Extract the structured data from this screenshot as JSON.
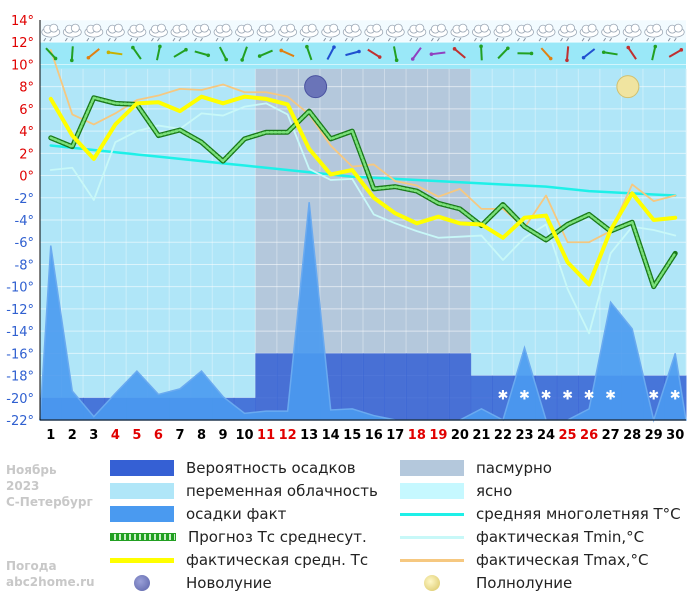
{
  "chart_data": {
    "type": "line",
    "title": "",
    "xlabel": "",
    "ylabel": "",
    "ylim": [
      -22,
      14
    ],
    "y_ticks": [
      "14°",
      "12°",
      "10°",
      "8°",
      "6°",
      "4°",
      "2°",
      "0°",
      "-2°",
      "-4°",
      "-6°",
      "-8°",
      "-10°",
      "-12°",
      "-14°",
      "-16°",
      "-18°",
      "-20°",
      "-22°"
    ],
    "x": [
      1,
      2,
      3,
      4,
      5,
      6,
      7,
      8,
      9,
      10,
      11,
      12,
      13,
      14,
      15,
      16,
      17,
      18,
      19,
      20,
      21,
      22,
      23,
      24,
      25,
      26,
      27,
      28,
      29,
      30
    ],
    "x_labels": [
      "1",
      "2",
      "3",
      "4",
      "5",
      "6",
      "7",
      "8",
      "9",
      "10",
      "11",
      "12",
      "13",
      "14",
      "15",
      "16",
      "17",
      "18",
      "19",
      "20",
      "21",
      "22",
      "23",
      "24",
      "25",
      "26",
      "27",
      "28",
      "29",
      "30"
    ],
    "weekend_days": [
      4,
      5,
      6,
      11,
      12,
      18,
      19,
      25,
      26
    ],
    "weekend_color": "#e00000",
    "weekday_color": "#000000",
    "grid": true,
    "series": [
      {
        "name": "средняя многолетняя T°C",
        "color": "#1ef0e8",
        "values": [
          2.7,
          2.5,
          2.3,
          2.1,
          1.9,
          1.7,
          1.5,
          1.3,
          1.1,
          0.9,
          0.7,
          0.5,
          0.3,
          0.1,
          -0.1,
          -0.2,
          -0.3,
          -0.4,
          -0.5,
          -0.6,
          -0.7,
          -0.8,
          -0.9,
          -1.0,
          -1.2,
          -1.4,
          -1.5,
          -1.6,
          -1.7,
          -1.8
        ]
      },
      {
        "name": "фактическая Tmin,°C",
        "color": "#c8f8f8",
        "values": [
          0.5,
          0.7,
          -2.2,
          3.0,
          4.0,
          4.5,
          4.2,
          5.6,
          5.4,
          6.2,
          6.5,
          5.5,
          0.6,
          -0.4,
          -0.3,
          -3.5,
          -4.3,
          -5.0,
          -5.6,
          -5.5,
          -5.4,
          -7.6,
          -5.6,
          -4.4,
          -10.2,
          -14.2,
          -7.0,
          -4.6,
          -4.9,
          -5.4
        ]
      },
      {
        "name": "фактическая Tmax,°C",
        "color": "#f6c880",
        "values": [
          11.3,
          5.5,
          4.6,
          5.6,
          6.8,
          7.2,
          7.8,
          7.7,
          8.2,
          7.5,
          7.5,
          7.1,
          5.5,
          2.7,
          0.8,
          1.0,
          -0.5,
          -0.9,
          -1.9,
          -1.2,
          -3.0,
          -3.0,
          -4.7,
          -1.8,
          -6.0,
          -6.0,
          -5.0,
          -0.8,
          -2.3,
          -1.8
        ]
      },
      {
        "name": "Прогноз Тс среднесут.",
        "color": "#22a022",
        "values": [
          3.4,
          2.6,
          7.0,
          6.5,
          6.4,
          3.6,
          4.1,
          3.0,
          1.3,
          3.3,
          3.9,
          3.9,
          5.8,
          3.3,
          4.0,
          -1.2,
          -1.0,
          -1.4,
          -2.5,
          -3.0,
          -4.5,
          -2.6,
          -4.6,
          -5.8,
          -4.4,
          -3.5,
          -5.0,
          -4.2,
          -10.0,
          -7.0
        ]
      },
      {
        "name": "фактическая средн. Тс",
        "color": "#ffff00",
        "values": [
          6.9,
          3.6,
          1.5,
          4.6,
          6.5,
          6.6,
          5.8,
          7.1,
          6.5,
          7.1,
          6.9,
          6.4,
          2.4,
          0.1,
          0.5,
          -2.0,
          -3.4,
          -4.3,
          -3.7,
          -4.3,
          -4.4,
          -5.6,
          -3.8,
          -3.6,
          -7.8,
          -9.8,
          -4.9,
          -1.6,
          -4.0,
          -3.8
        ]
      },
      {
        "name": "осадки факт",
        "color": "#4a9af0",
        "values": [
          -6.3,
          -19.4,
          -21.7,
          -19.6,
          -17.6,
          -19.7,
          -19.2,
          -17.6,
          -19.9,
          -21.4,
          -21.2,
          -21.2,
          -2.4,
          -21.1,
          -21.0,
          -21.6,
          -22.0,
          -22.0,
          -22.0,
          -22.0,
          -21.0,
          -22.0,
          -15.5,
          -22.0,
          -22.0,
          -21.0,
          -11.4,
          -13.8,
          -22.0,
          -16.0
        ]
      },
      {
        "name": "Вероятность осадков",
        "color": "#3560d4",
        "values": [
          -20,
          -20,
          -20,
          -20,
          -20,
          -20,
          -20,
          -20,
          -20,
          -20,
          -16,
          -16,
          -16,
          -16,
          -16,
          -16,
          -16,
          -16,
          -16,
          -16,
          -18,
          -18,
          -18,
          -18,
          -18,
          -18,
          -18,
          -18,
          -18,
          -18
        ]
      }
    ],
    "cloud_bands": {
      "overcast_color": "#b4c8dc",
      "partly_cloudy_color": "#b0e6f8",
      "clear_color": "#c6f8ff",
      "top_band_color": "#9ae8f8",
      "partly_cloudy_days": [
        1,
        2,
        3,
        4,
        5,
        6,
        7,
        8,
        9,
        10,
        21,
        22,
        23,
        24,
        25,
        26,
        27,
        28,
        29,
        30
      ]
    },
    "moon_phases": [
      {
        "label": "Новолуние",
        "day": 13.3,
        "value": 8.0,
        "color": "#6a74b8"
      },
      {
        "label": "Полнолуние",
        "day": 27.8,
        "value": 8.0,
        "color": "#f0e4a0"
      }
    ],
    "snow_markers_days": [
      22,
      23,
      24,
      25,
      26,
      27,
      29,
      30
    ],
    "wind_arrow_colors": [
      "#22a022",
      "#22a022",
      "#e08010",
      "#c8b000",
      "#22a022",
      "#22a022",
      "#22a022",
      "#22a022",
      "#22a022",
      "#22a022",
      "#22a022",
      "#e08010",
      "#22a022",
      "#2050d0",
      "#2050d0",
      "#c03030",
      "#22a022",
      "#9040c0",
      "#9040c0",
      "#c03030",
      "#22a022",
      "#22a022",
      "#22a022",
      "#e08010",
      "#c03030",
      "#2050d0",
      "#22a022",
      "#c03030",
      "#22a022",
      "#c03030"
    ],
    "sun_days": [
      16,
      17,
      18
    ]
  },
  "legend": {
    "left": [
      {
        "label": "Вероятность осадков",
        "kind": "box",
        "color": "#3560d4"
      },
      {
        "label": "переменная облачность",
        "kind": "box",
        "color": "#b0e6f8"
      },
      {
        "label": "осадки факт",
        "kind": "box",
        "color": "#4a9af0"
      },
      {
        "label": "Прогноз Тс среднесут.",
        "kind": "line-dotted",
        "color": "#22a022"
      },
      {
        "label": "фактическая средн. Тс",
        "kind": "line",
        "color": "#ffff00"
      },
      {
        "label": "Новолуние",
        "kind": "moon",
        "color": "#6a74b8"
      }
    ],
    "right": [
      {
        "label": "пасмурно",
        "kind": "box",
        "color": "#b4c8dc"
      },
      {
        "label": "ясно",
        "kind": "box",
        "color": "#c6f8ff"
      },
      {
        "label": "средняя многолетняя T°C",
        "kind": "line",
        "color": "#1ef0e8"
      },
      {
        "label": "фактическая Tmin,°C",
        "kind": "line",
        "color": "#c8f8f8"
      },
      {
        "label": "фактическая Tmax,°C",
        "kind": "line",
        "color": "#f6c880"
      },
      {
        "label": "Полнолуние",
        "kind": "moon",
        "color": "#f0e4a0"
      }
    ]
  },
  "side_text": {
    "month": "Ноябрь",
    "year": "2023",
    "city": "С-Петербург",
    "site_title": "Погода",
    "site_url": "abc2home.ru"
  }
}
